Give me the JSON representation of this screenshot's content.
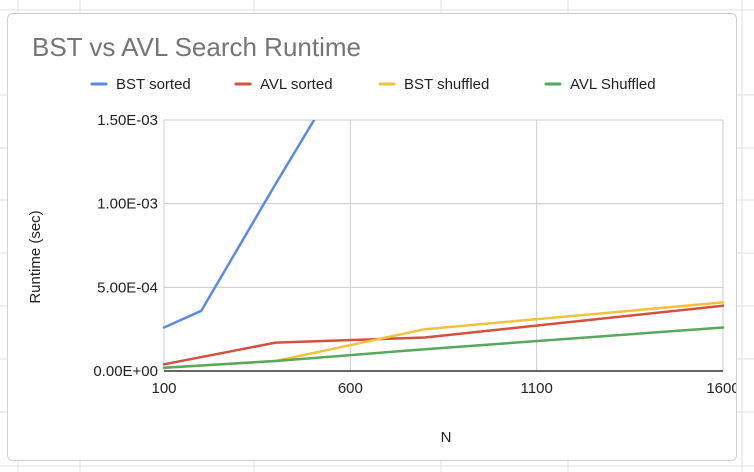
{
  "colors": {
    "gridline": "#cccccc",
    "axis": "#333333",
    "sheet_grid": "#e2e2e2",
    "card_border": "#cfcfcf"
  },
  "chart_data": {
    "type": "line",
    "title": "BST vs AVL Search Runtime",
    "xlabel": "N",
    "ylabel": "Runtime (sec)",
    "xlim": [
      100,
      1600
    ],
    "ylim": [
      0,
      0.0015
    ],
    "x_ticks": [
      100,
      600,
      1100,
      1600
    ],
    "x_tick_labels": [
      "100",
      "600",
      "1100",
      "1600"
    ],
    "y_ticks": [
      0,
      0.0005,
      0.001,
      0.0015
    ],
    "y_tick_labels": [
      "0.00E+00",
      "5.00E-04",
      "1.00E-03",
      "1.50E-03"
    ],
    "grid": true,
    "legend_position": "top",
    "series": [
      {
        "name": "BST sorted",
        "color": "#5b8ae6",
        "x": [
          100,
          200,
          400,
          800
        ],
        "y": [
          0.00026,
          0.00036,
          0.00112,
          0.0026
        ]
      },
      {
        "name": "AVL sorted",
        "color": "#d6503e",
        "x": [
          100,
          400,
          800,
          1600
        ],
        "y": [
          4e-05,
          0.00017,
          0.0002,
          0.00039
        ]
      },
      {
        "name": "BST shuffled",
        "color": "#f2c23d",
        "x": [
          100,
          400,
          800,
          1600
        ],
        "y": [
          2e-05,
          6e-05,
          0.00025,
          0.00041
        ]
      },
      {
        "name": "AVL Shuffled",
        "color": "#57a95b",
        "x": [
          100,
          400,
          800,
          1600
        ],
        "y": [
          2e-05,
          6e-05,
          0.00013,
          0.00026
        ]
      }
    ]
  }
}
